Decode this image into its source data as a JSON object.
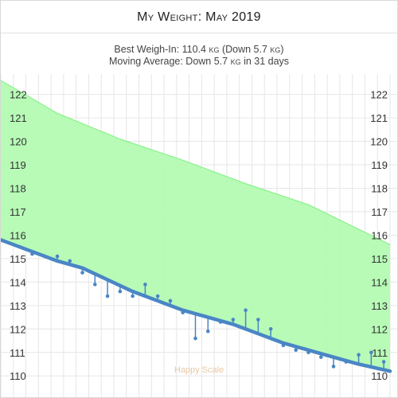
{
  "header": {
    "title": "My Weight: May 2019",
    "best_prefix": "Best Weigh-In: 110.4 ",
    "best_unit": "kg",
    "best_mid": " (Down 5.7 ",
    "best_unit2": "kg",
    "best_end": ")",
    "avg_prefix": "Moving Average: Down 5.7 ",
    "avg_unit": "kg",
    "avg_end": " in 31 days"
  },
  "watermark": "Happy Scale",
  "colors": {
    "band_fill": "#b3fbb3",
    "band_edge": "#7ff07f",
    "trend_line": "#4a86c5",
    "grid": "#e6e6e6"
  },
  "chart_data": {
    "type": "line",
    "title": "My Weight: May 2019",
    "yticks": [
      110,
      111,
      112,
      113,
      114,
      115,
      116,
      117,
      118,
      119,
      120,
      121,
      122
    ],
    "ylim": [
      109.6,
      122.6
    ],
    "xlim": [
      0.5,
      31.5
    ],
    "grid": true,
    "goal_band_upper": {
      "x": [
        0.5,
        5,
        10,
        15,
        20,
        25,
        31.5
      ],
      "y": [
        122.6,
        121.2,
        120.1,
        119.2,
        118.2,
        117.3,
        115.6
      ]
    },
    "moving_average": {
      "x": [
        0.5,
        3,
        5,
        7,
        9,
        11,
        13,
        15,
        17,
        19,
        21,
        23,
        25,
        27,
        29,
        31.5
      ],
      "y": [
        115.8,
        115.3,
        114.9,
        114.6,
        114.1,
        113.6,
        113.2,
        112.8,
        112.5,
        112.2,
        111.8,
        111.4,
        111.1,
        110.8,
        110.5,
        110.2
      ]
    },
    "weigh_ins": {
      "x": [
        2,
        3,
        4,
        5,
        6,
        7,
        8,
        9,
        10,
        11,
        12,
        13,
        14,
        15,
        16,
        17,
        18,
        19,
        20,
        21,
        22,
        23,
        24,
        25,
        26,
        27,
        28,
        29,
        30,
        31
      ],
      "y": [
        115.5,
        115.2,
        115.1,
        115.1,
        114.9,
        114.4,
        113.9,
        113.4,
        113.6,
        113.4,
        113.9,
        113.4,
        113.2,
        112.7,
        111.6,
        111.9,
        112.3,
        112.4,
        112.8,
        112.4,
        112.0,
        111.3,
        111.1,
        111.0,
        110.8,
        110.4,
        110.6,
        110.9,
        111.0,
        110.6
      ]
    }
  }
}
